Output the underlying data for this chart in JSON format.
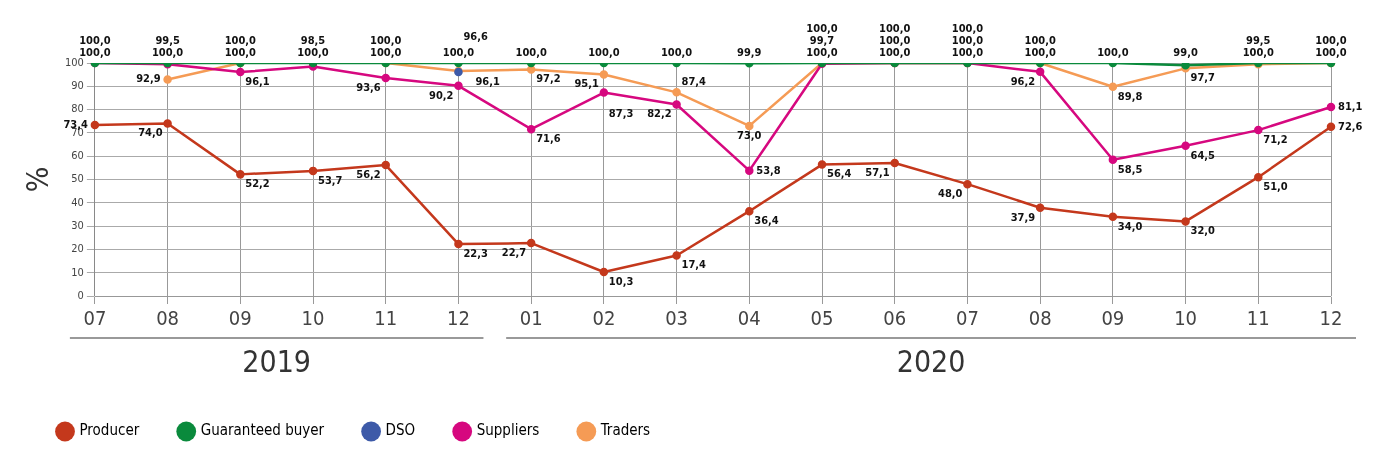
{
  "chart_data": {
    "type": "line",
    "ylabel": "%",
    "categories": [
      "07",
      "08",
      "09",
      "10",
      "11",
      "12",
      "01",
      "02",
      "03",
      "04",
      "05",
      "06",
      "07",
      "08",
      "09",
      "10",
      "11",
      "12"
    ],
    "ylim": [
      0,
      100
    ],
    "yticks": [
      0,
      10,
      20,
      30,
      40,
      50,
      60,
      70,
      80,
      90,
      100
    ],
    "grid": true,
    "legend": "bottom",
    "marker": "circle",
    "line_style": "solid",
    "annotations": [
      "2019",
      "2020"
    ],
    "series": [
      {
        "name": "Producer",
        "color": "#c4381c",
        "values": [
          73.4,
          74.0,
          52.2,
          53.7,
          56.2,
          22.3,
          22.7,
          10.3,
          17.4,
          36.4,
          56.4,
          57.1,
          48.0,
          37.9,
          34.0,
          32.0,
          51.0,
          72.6
        ],
        "value_labels": [
          "73,4",
          "74,0",
          "52,2",
          "53,7",
          "56,2",
          "22,3",
          "22,7",
          "10,3",
          "17,4",
          "36,4",
          "56,4",
          "57,1",
          "48,0",
          "37,9",
          "34,0",
          "32,0",
          "51,0",
          "72,6"
        ]
      },
      {
        "name": "Guaranteed buyer",
        "color": "#0a8a3c",
        "values": [
          100,
          100,
          100,
          100,
          100,
          100,
          100,
          100,
          100,
          99.9,
          100,
          100,
          100,
          100,
          100,
          99.0,
          100,
          100
        ],
        "value_labels": [
          "100,0",
          "100,0",
          "100,0",
          "100,0",
          "100,0",
          "100,0",
          "100,0",
          "100,0",
          "100,0",
          "99,9",
          "100,0",
          "100,0",
          "100,0",
          "100,0",
          "100,0",
          "99,0",
          "100,0",
          "100,0"
        ]
      },
      {
        "name": "DSO",
        "color": "#3d5aa8",
        "values": [
          null,
          null,
          null,
          null,
          null,
          96.1,
          null,
          null,
          null,
          null,
          null,
          null,
          null,
          null,
          null,
          null,
          null,
          null
        ],
        "value_labels": [
          null,
          null,
          null,
          null,
          null,
          "96,1",
          null,
          null,
          null,
          null,
          null,
          null,
          null,
          null,
          null,
          null,
          null,
          null
        ]
      },
      {
        "name": "Suppliers",
        "color": "#d6087f",
        "values": [
          100,
          99.5,
          96.1,
          98.5,
          93.6,
          90.2,
          71.6,
          87.3,
          82.2,
          53.8,
          99.7,
          100,
          100,
          96.2,
          58.5,
          64.5,
          71.2,
          81.1
        ],
        "value_labels": [
          "100,0",
          "99,5",
          "96,1",
          "98,5",
          "93,6",
          "90,2",
          "71,6",
          "87,3",
          "82,2",
          "53,8",
          "99,7",
          "100,0",
          "100,0",
          "96,2",
          "58,5",
          "64,5",
          "71,2",
          "81,1"
        ]
      },
      {
        "name": "Traders",
        "color": "#f59b55",
        "values": [
          null,
          92.9,
          100,
          null,
          100,
          96.6,
          97.2,
          95.1,
          87.4,
          73.0,
          100,
          100,
          100,
          100,
          89.8,
          97.7,
          99.5,
          100
        ],
        "value_labels": [
          null,
          "92,9",
          "100,0",
          null,
          "100,0",
          "96,6",
          "97,2",
          "95,1",
          "87,4",
          "73,0",
          "100,0",
          "100,0",
          "100,0",
          "100,0",
          "89,8",
          "97,7",
          "99,5",
          "100,0"
        ]
      }
    ]
  }
}
